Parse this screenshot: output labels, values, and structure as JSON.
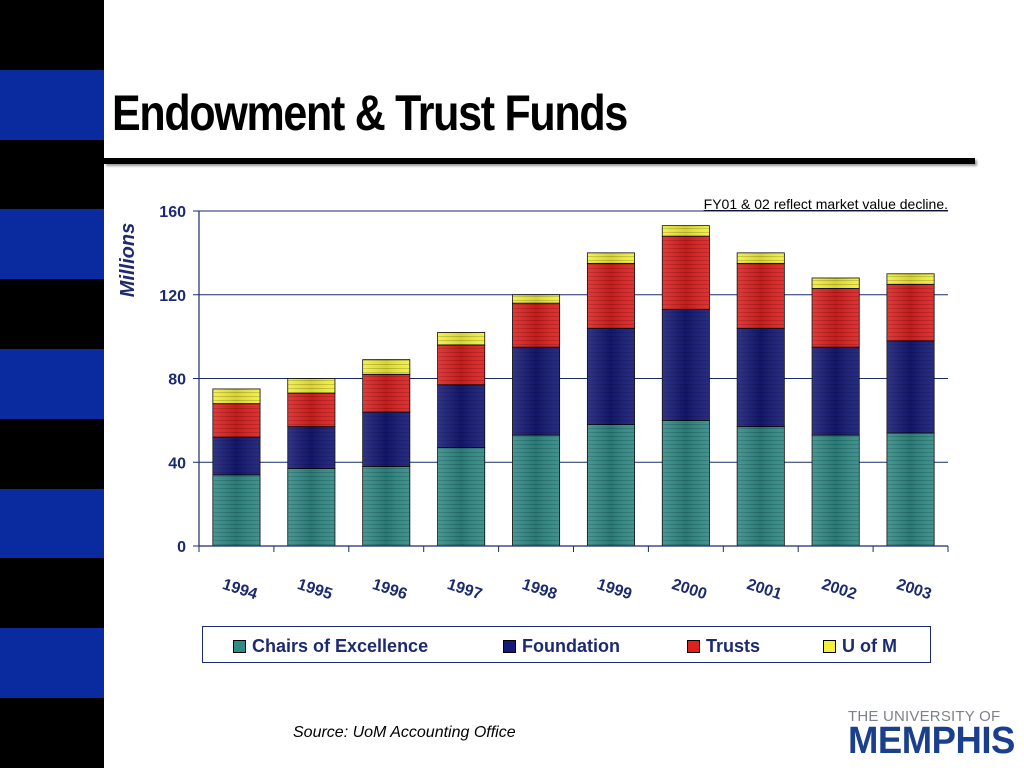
{
  "slide": {
    "title": "Endowment & Trust Funds",
    "note": "FY01 & 02 reflect market value decline.",
    "source": "Source: UoM Accounting Office",
    "logo": {
      "top": "THE UNIVERSITY OF",
      "main": "MEMPHIS"
    },
    "colors": {
      "sidebar_black": "#000000",
      "sidebar_blue": "#0a2aa0",
      "title_rule": "#000000",
      "logo_blue": "#1a3f8c",
      "logo_gray": "#7d8188"
    }
  },
  "chart_data": {
    "type": "bar",
    "stacked": true,
    "title": "",
    "xlabel": "",
    "ylabel": "Millions",
    "ylim": [
      0,
      160
    ],
    "yticks": [
      0,
      40,
      80,
      120,
      160
    ],
    "grid": true,
    "legend_position": "bottom",
    "categories": [
      "1994",
      "1995",
      "1996",
      "1997",
      "1998",
      "1999",
      "2000",
      "2001",
      "2002",
      "2003"
    ],
    "series": [
      {
        "name": "Chairs of Excellence",
        "color": "#2e8b86",
        "values": [
          34,
          37,
          38,
          47,
          53,
          58,
          60,
          57,
          53,
          54
        ]
      },
      {
        "name": "Foundation",
        "color": "#14197a",
        "values": [
          18,
          20,
          26,
          30,
          42,
          46,
          53,
          47,
          42,
          44
        ]
      },
      {
        "name": "Trusts",
        "color": "#e01f1f",
        "values": [
          16,
          16,
          18,
          19,
          21,
          31,
          35,
          31,
          28,
          27
        ]
      },
      {
        "name": "U of M",
        "color": "#f3ef3a",
        "values": [
          7,
          7,
          7,
          6,
          4,
          5,
          5,
          5,
          5,
          5
        ]
      }
    ]
  }
}
